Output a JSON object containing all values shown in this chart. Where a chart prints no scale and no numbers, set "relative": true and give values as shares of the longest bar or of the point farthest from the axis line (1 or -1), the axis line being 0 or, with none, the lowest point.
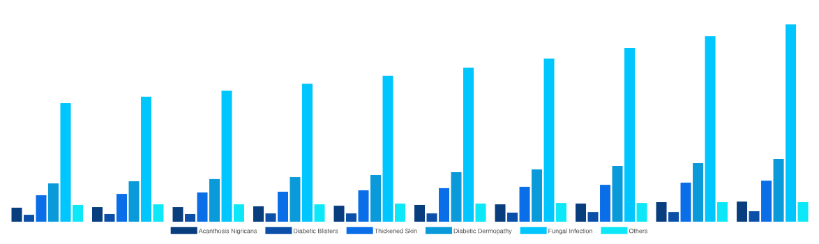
{
  "chart_data": {
    "type": "bar",
    "relative": true,
    "legend": "bottom",
    "categories": [
      null,
      null,
      null,
      null,
      null,
      null,
      null,
      null,
      null,
      null
    ],
    "series": [
      {
        "name": "Acanthosis Nigricans",
        "color": "#083d7e",
        "values": [
          0.071,
          0.074,
          0.074,
          0.078,
          0.081,
          0.085,
          0.088,
          0.092,
          0.099,
          0.102
        ]
      },
      {
        "name": "Diabetic Blisters",
        "color": "#0b4fa8",
        "values": [
          0.035,
          0.039,
          0.039,
          0.042,
          0.042,
          0.042,
          0.046,
          0.049,
          0.049,
          0.053
        ]
      },
      {
        "name": "Thickened Skin",
        "color": "#0a6ee8",
        "values": [
          0.134,
          0.141,
          0.148,
          0.152,
          0.159,
          0.17,
          0.177,
          0.187,
          0.198,
          0.208
        ]
      },
      {
        "name": "Diabetic Dermopathy",
        "color": "#0a9ad9",
        "values": [
          0.194,
          0.205,
          0.216,
          0.226,
          0.237,
          0.251,
          0.265,
          0.283,
          0.297,
          0.318
        ]
      },
      {
        "name": "Fungal Infection",
        "color": "#00c6ff",
        "values": [
          0.601,
          0.633,
          0.664,
          0.7,
          0.739,
          0.781,
          0.827,
          0.88,
          0.94,
          1
        ]
      },
      {
        "name": "Others",
        "color": "#0de8f8",
        "values": [
          0.085,
          0.088,
          0.088,
          0.088,
          0.092,
          0.092,
          0.095,
          0.095,
          0.099,
          0.099
        ]
      }
    ]
  }
}
